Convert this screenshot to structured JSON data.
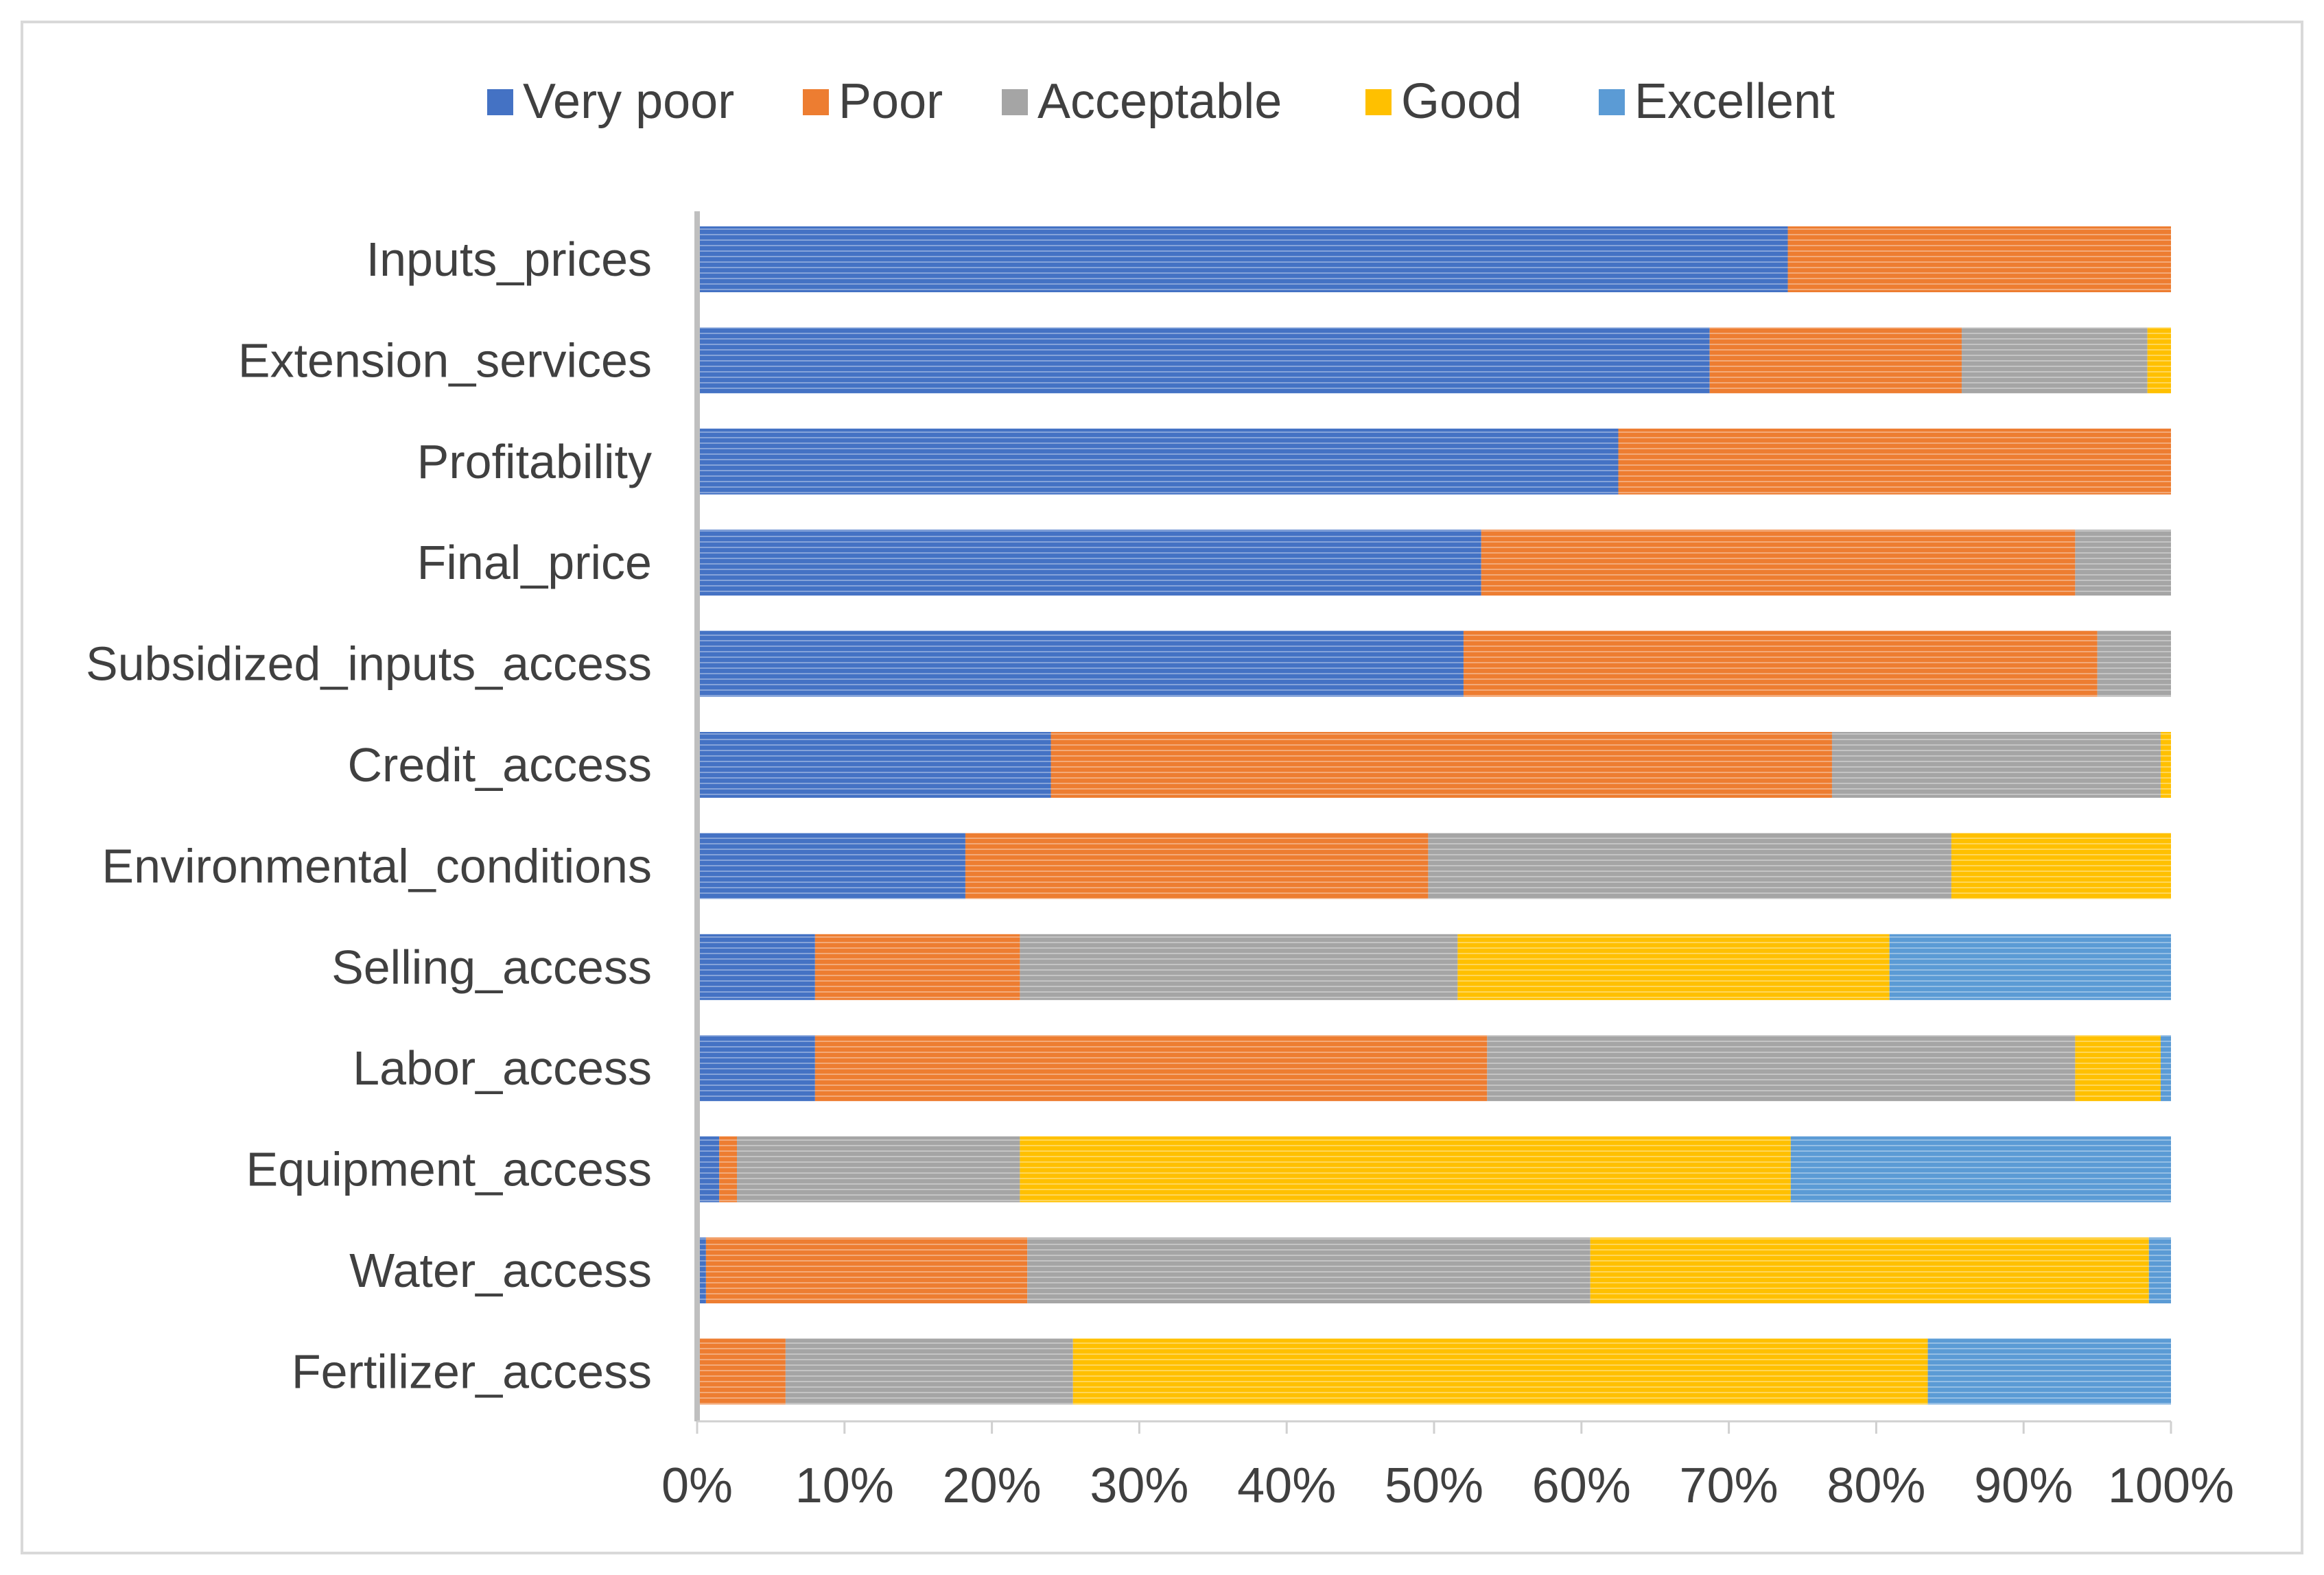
{
  "chart_data": {
    "type": "bar",
    "orientation": "horizontal",
    "stacked": "percent",
    "title": "",
    "xlabel": "",
    "ylabel": "",
    "xlim": [
      0,
      100
    ],
    "legend_position": "top",
    "x_ticks": [
      "0%",
      "10%",
      "20%",
      "30%",
      "40%",
      "50%",
      "60%",
      "70%",
      "80%",
      "90%",
      "100%"
    ],
    "categories": [
      "Inputs_prices",
      "Extension_services",
      "Profitability",
      "Final_price",
      "Subsidized_inputs_access",
      "Credit_access",
      "Environmental_conditions",
      "Selling_access",
      "Labor_access",
      "Equipment_access",
      "Water_access",
      "Fertilizer_access"
    ],
    "series": [
      {
        "name": "Very poor",
        "color": "#4472C4",
        "values": [
          74,
          68.7,
          62.5,
          53.2,
          52,
          24,
          18.2,
          8,
          8,
          1.5,
          0.6,
          0
        ]
      },
      {
        "name": "Poor",
        "color": "#ED7D31",
        "values": [
          26,
          17.1,
          37.5,
          40.3,
          43,
          53,
          31.4,
          13.9,
          45.6,
          1.2,
          21.8,
          6
        ]
      },
      {
        "name": "Acceptable",
        "color": "#A5A5A5",
        "values": [
          0,
          12.6,
          0,
          6.5,
          5,
          22.3,
          35.5,
          29.7,
          39.9,
          19.2,
          38.2,
          19.5
        ]
      },
      {
        "name": "Good",
        "color": "#FFC000",
        "values": [
          0,
          1.6,
          0,
          0,
          0,
          0.7,
          14.9,
          29.3,
          5.8,
          52.3,
          37.9,
          58
        ]
      },
      {
        "name": "Excellent",
        "color": "#5B9BD5",
        "values": [
          0,
          0,
          0,
          0,
          0,
          0,
          0,
          19.1,
          0.7,
          25.8,
          1.5,
          16.5
        ]
      }
    ]
  }
}
